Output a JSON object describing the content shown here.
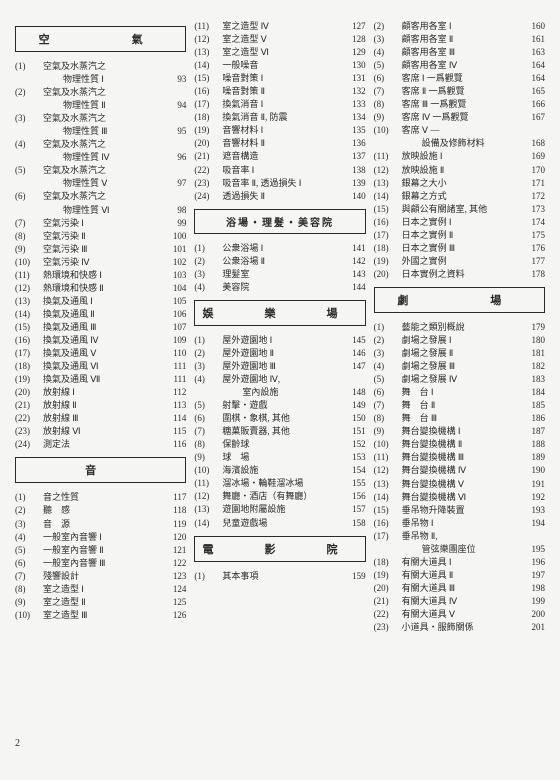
{
  "pageNumber": "2",
  "columns": [
    {
      "sections": [
        {
          "title": "空　　氣",
          "items": [
            {
              "n": "(1)",
              "t": "空氣及水蒸汽之\n物理性質 Ⅰ",
              "p": "93"
            },
            {
              "n": "(2)",
              "t": "空氣及水蒸汽之\n物理性質 Ⅱ",
              "p": "94"
            },
            {
              "n": "(3)",
              "t": "空氣及水蒸汽之\n物理性質 Ⅲ",
              "p": "95"
            },
            {
              "n": "(4)",
              "t": "空氣及水蒸汽之\n物理性質 Ⅳ",
              "p": "96"
            },
            {
              "n": "(5)",
              "t": "空氣及水蒸汽之\n物理性質 Ⅴ",
              "p": "97"
            },
            {
              "n": "(6)",
              "t": "空氣及水蒸汽之\n物理性質 Ⅵ",
              "p": "98"
            },
            {
              "n": "(7)",
              "t": "空氣污染 Ⅰ",
              "p": "99"
            },
            {
              "n": "(8)",
              "t": "空氣污染 Ⅱ",
              "p": "100"
            },
            {
              "n": "(9)",
              "t": "空氣污染 Ⅲ",
              "p": "101"
            },
            {
              "n": "(10)",
              "t": "空氣污染 Ⅳ",
              "p": "102"
            },
            {
              "n": "(11)",
              "t": "熱環境和快感 Ⅰ",
              "p": "103"
            },
            {
              "n": "(12)",
              "t": "熱環境和快感 Ⅱ",
              "p": "104"
            },
            {
              "n": "(13)",
              "t": "換氣及通風 Ⅰ",
              "p": "105"
            },
            {
              "n": "(14)",
              "t": "換氣及通風 Ⅱ",
              "p": "106"
            },
            {
              "n": "(15)",
              "t": "換氣及通風 Ⅲ",
              "p": "107"
            },
            {
              "n": "(16)",
              "t": "換氣及通風 Ⅳ",
              "p": "109"
            },
            {
              "n": "(17)",
              "t": "換氣及通風 Ⅴ",
              "p": "110"
            },
            {
              "n": "(18)",
              "t": "換氣及通風 Ⅵ",
              "p": "111"
            },
            {
              "n": "(19)",
              "t": "換氣及通風 Ⅶ",
              "p": "111"
            },
            {
              "n": "(20)",
              "t": "放射線 Ⅰ",
              "p": "112"
            },
            {
              "n": "(21)",
              "t": "放射線 Ⅱ",
              "p": "113"
            },
            {
              "n": "(22)",
              "t": "放射線 Ⅲ",
              "p": "114"
            },
            {
              "n": "(23)",
              "t": "放射線 Ⅵ",
              "p": "115"
            },
            {
              "n": "(24)",
              "t": "測定法",
              "p": "116"
            }
          ]
        },
        {
          "title": "音",
          "items": [
            {
              "n": "(1)",
              "t": "音之性質",
              "p": "117"
            },
            {
              "n": "(2)",
              "t": "聽　感",
              "p": "118"
            },
            {
              "n": "(3)",
              "t": "音　源",
              "p": "119"
            },
            {
              "n": "(4)",
              "t": "一般室內音響 Ⅰ",
              "p": "120"
            },
            {
              "n": "(5)",
              "t": "一般室內音響 Ⅱ",
              "p": "121"
            },
            {
              "n": "(6)",
              "t": "一般室內音響 Ⅲ",
              "p": "122"
            },
            {
              "n": "(7)",
              "t": "殘響設計",
              "p": "123"
            },
            {
              "n": "(8)",
              "t": "室之造型 Ⅰ",
              "p": "124"
            },
            {
              "n": "(9)",
              "t": "室之造型 Ⅱ",
              "p": "125"
            },
            {
              "n": "(10)",
              "t": "室之造型 Ⅲ",
              "p": "126"
            }
          ]
        }
      ]
    },
    {
      "sections": [
        {
          "title": null,
          "items": [
            {
              "n": "(11)",
              "t": "室之造型 Ⅳ",
              "p": "127"
            },
            {
              "n": "(12)",
              "t": "室之造型 Ⅴ",
              "p": "128"
            },
            {
              "n": "(13)",
              "t": "室之造型 Ⅵ",
              "p": "129"
            },
            {
              "n": "(14)",
              "t": "一般噪音",
              "p": "130"
            },
            {
              "n": "(15)",
              "t": "噪音對策 Ⅰ",
              "p": "131"
            },
            {
              "n": "(16)",
              "t": "噪音對策 Ⅱ",
              "p": "132"
            },
            {
              "n": "(17)",
              "t": "換氣消音 Ⅰ",
              "p": "133"
            },
            {
              "n": "(18)",
              "t": "換氣消音 Ⅱ, 防震",
              "p": "134"
            },
            {
              "n": "(19)",
              "t": "音響材料 Ⅰ",
              "p": "135"
            },
            {
              "n": "(20)",
              "t": "音響材料 Ⅱ",
              "p": "136"
            },
            {
              "n": "(21)",
              "t": "遮音構造",
              "p": "137"
            },
            {
              "n": "(22)",
              "t": "吸音率 Ⅰ",
              "p": "138"
            },
            {
              "n": "(23)",
              "t": "吸音率 Ⅱ, 透過損失 Ⅰ",
              "p": "139"
            },
            {
              "n": "(24)",
              "t": "透過損失 Ⅱ",
              "p": "140"
            }
          ]
        },
        {
          "title": "浴場・理髮・美容院",
          "tight": true,
          "items": [
            {
              "n": "(1)",
              "t": "公衆浴場 Ⅰ",
              "p": "141"
            },
            {
              "n": "(2)",
              "t": "公衆浴場 Ⅱ",
              "p": "142"
            },
            {
              "n": "(3)",
              "t": "理髮室",
              "p": "143"
            },
            {
              "n": "(4)",
              "t": "美容院",
              "p": "144"
            }
          ]
        },
        {
          "title": "娛　樂　場",
          "items": [
            {
              "n": "(1)",
              "t": "屋外遊園地 Ⅰ",
              "p": "145"
            },
            {
              "n": "(2)",
              "t": "屋外遊園地 Ⅱ",
              "p": "146"
            },
            {
              "n": "(3)",
              "t": "屋外遊園地 Ⅲ",
              "p": "147"
            },
            {
              "n": "(4)",
              "t": "屋外遊園地 Ⅳ,\n室內設施",
              "p": "148"
            },
            {
              "n": "(5)",
              "t": "射擊・遊戲",
              "p": "149"
            },
            {
              "n": "(6)",
              "t": "圍棋・象棋, 其他",
              "p": "150"
            },
            {
              "n": "(7)",
              "t": "糖菓販賣器, 其他",
              "p": "151"
            },
            {
              "n": "(8)",
              "t": "保齡球",
              "p": "152"
            },
            {
              "n": "(9)",
              "t": "球　場",
              "p": "153"
            },
            {
              "n": "(10)",
              "t": "海濱設施",
              "p": "154"
            },
            {
              "n": "(11)",
              "t": "溜冰場・輪鞋溜冰場",
              "p": "155"
            },
            {
              "n": "(12)",
              "t": "舞廳・酒店（有舞廳）",
              "p": "156"
            },
            {
              "n": "(13)",
              "t": "遊園地附屬設施",
              "p": "157"
            },
            {
              "n": "(14)",
              "t": "兒童遊戲場",
              "p": "158"
            }
          ]
        },
        {
          "title": "電　影　院",
          "items": [
            {
              "n": "(1)",
              "t": "其本事項",
              "p": "159"
            }
          ]
        }
      ]
    },
    {
      "sections": [
        {
          "title": null,
          "items": [
            {
              "n": "(2)",
              "t": "顧客用各室 Ⅰ",
              "p": "160"
            },
            {
              "n": "(3)",
              "t": "顧客用各室 Ⅱ",
              "p": "161"
            },
            {
              "n": "(4)",
              "t": "顧客用各室 Ⅲ",
              "p": "163"
            },
            {
              "n": "(5)",
              "t": "顧客用各室 Ⅳ",
              "p": "164"
            },
            {
              "n": "(6)",
              "t": "客席 Ⅰ 一爲觀覽",
              "p": "164"
            },
            {
              "n": "(7)",
              "t": "客席 Ⅱ 一爲觀覽",
              "p": "165"
            },
            {
              "n": "(8)",
              "t": "客席 Ⅲ 一爲觀覽",
              "p": "166"
            },
            {
              "n": "(9)",
              "t": "客席 Ⅳ 一爲觀覽",
              "p": "167"
            },
            {
              "n": "(10)",
              "t": "客席 Ⅴ —\n設備及修飾材料",
              "p": "168"
            },
            {
              "n": "(11)",
              "t": "放映設施 Ⅰ",
              "p": "169"
            },
            {
              "n": "(12)",
              "t": "放映設施 Ⅱ",
              "p": "170"
            },
            {
              "n": "(13)",
              "t": "銀幕之大小",
              "p": "171"
            },
            {
              "n": "(14)",
              "t": "銀幕之方式",
              "p": "172"
            },
            {
              "n": "(15)",
              "t": "與顧公有關諸室, 其他",
              "p": "173"
            },
            {
              "n": "(16)",
              "t": "日本之實例 Ⅰ",
              "p": "174"
            },
            {
              "n": "(17)",
              "t": "日本之實例 Ⅱ",
              "p": "175"
            },
            {
              "n": "(18)",
              "t": "日本之實例 Ⅲ",
              "p": "176"
            },
            {
              "n": "(19)",
              "t": "外國之實例",
              "p": "177"
            },
            {
              "n": "(20)",
              "t": "日本實例之資料",
              "p": "178"
            }
          ]
        },
        {
          "title": "劇　　場",
          "items": [
            {
              "n": "(1)",
              "t": "藝能之類別概說",
              "p": "179"
            },
            {
              "n": "(2)",
              "t": "劇場之發展 Ⅰ",
              "p": "180"
            },
            {
              "n": "(3)",
              "t": "劇場之發展 Ⅱ",
              "p": "181"
            },
            {
              "n": "(4)",
              "t": "劇場之發展 Ⅲ",
              "p": "182"
            },
            {
              "n": "(5)",
              "t": "劇場之發展 Ⅳ",
              "p": "183"
            },
            {
              "n": "(6)",
              "t": "舞　台 Ⅰ",
              "p": "184"
            },
            {
              "n": "(7)",
              "t": "舞　台 Ⅱ",
              "p": "185"
            },
            {
              "n": "(8)",
              "t": "舞　台 Ⅲ",
              "p": "186"
            },
            {
              "n": "(9)",
              "t": "舞台變換機構 Ⅰ",
              "p": "187"
            },
            {
              "n": "(10)",
              "t": "舞台變換機構 Ⅱ",
              "p": "188"
            },
            {
              "n": "(11)",
              "t": "舞台變換機構 Ⅲ",
              "p": "189"
            },
            {
              "n": "(12)",
              "t": "舞台變換機構 Ⅳ",
              "p": "190"
            },
            {
              "n": "(13)",
              "t": "舞台變換機構 Ⅴ",
              "p": "191"
            },
            {
              "n": "(14)",
              "t": "舞台變換機構 Ⅵ",
              "p": "192"
            },
            {
              "n": "(15)",
              "t": "垂吊物升降裝置",
              "p": "193"
            },
            {
              "n": "(16)",
              "t": "垂吊物 Ⅰ",
              "p": "194"
            },
            {
              "n": "(17)",
              "t": "垂吊物 Ⅱ,\n管弦樂團座位",
              "p": "195"
            },
            {
              "n": "(18)",
              "t": "有關大道具 Ⅰ",
              "p": "196"
            },
            {
              "n": "(19)",
              "t": "有關大道具 Ⅱ",
              "p": "197"
            },
            {
              "n": "(20)",
              "t": "有關大道具 Ⅲ",
              "p": "198"
            },
            {
              "n": "(21)",
              "t": "有關大道具 Ⅳ",
              "p": "199"
            },
            {
              "n": "(22)",
              "t": "有關大道具 Ⅴ",
              "p": "200"
            },
            {
              "n": "(23)",
              "t": "小道具・服飾關係",
              "p": "201"
            }
          ]
        }
      ]
    }
  ]
}
